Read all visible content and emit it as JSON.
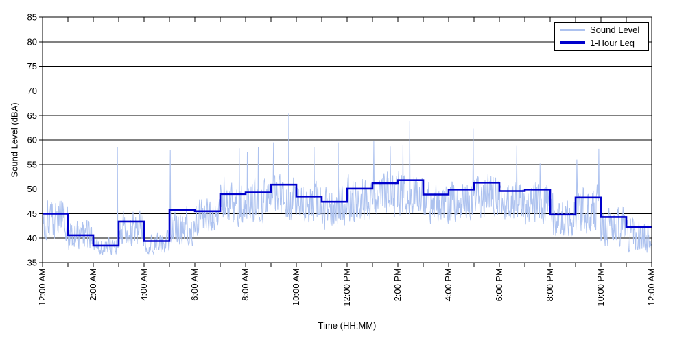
{
  "chart_data": {
    "type": "line",
    "title": "",
    "xlabel": "Time (HH:MM)",
    "ylabel": "Sound Level (dBA)",
    "ylim": [
      35,
      85
    ],
    "ytick_step": 5,
    "x_hours": 24,
    "grid": "horizontal-solid",
    "ytick_labels": [
      "85",
      "80",
      "75",
      "70",
      "65",
      "60",
      "55",
      "50",
      "45",
      "40",
      "35"
    ],
    "xtick_labels": [
      "12:00 AM",
      "2:00 AM",
      "4:00 AM",
      "6:00 AM",
      "8:00 AM",
      "10:00 AM",
      "12:00 PM",
      "2:00 PM",
      "4:00 PM",
      "6:00 PM",
      "8:00 PM",
      "10:00 PM",
      "12:00 AM"
    ],
    "legend": {
      "position": "top-right",
      "entries": [
        {
          "label": "Sound Level",
          "color": "#ADC2EF",
          "line_width": 1
        },
        {
          "label": "1-Hour Leq",
          "color": "#0000CC",
          "line_width": 3
        }
      ]
    },
    "colors": {
      "sound_level": "#ADC2EF",
      "leq": "#0000CC",
      "grid": "#000000",
      "axis": "#000000",
      "text": "#000000",
      "background": "#FFFFFF"
    },
    "series": [
      {
        "name": "Sound Level",
        "type": "minute-samples",
        "description": "Noisy ~1-minute sound level samples, estimated as an hourly min/max envelope plus notable spikes read from the plot",
        "start_dba": 43.5,
        "hourly_range_dba": [
          [
            39,
            49
          ],
          [
            36.8,
            44.5
          ],
          [
            36.5,
            41
          ],
          [
            37.5,
            46.5
          ],
          [
            36.5,
            42
          ],
          [
            38,
            47
          ],
          [
            40,
            49
          ],
          [
            42,
            52.5
          ],
          [
            42.5,
            53.5
          ],
          [
            43,
            54
          ],
          [
            42,
            52.5
          ],
          [
            41,
            52
          ],
          [
            42.5,
            53.5
          ],
          [
            43.5,
            54.5
          ],
          [
            43.5,
            55
          ],
          [
            42.5,
            52.5
          ],
          [
            43,
            53.5
          ],
          [
            43.5,
            54.5
          ],
          [
            43,
            53
          ],
          [
            42,
            53
          ],
          [
            39.5,
            50
          ],
          [
            40,
            52
          ],
          [
            37.5,
            47.5
          ],
          [
            36.5,
            45
          ]
        ],
        "spikes": [
          {
            "hour": 2.95,
            "dba": 58.5
          },
          {
            "hour": 5.03,
            "dba": 58.0
          },
          {
            "hour": 7.15,
            "dba": 52.5
          },
          {
            "hour": 7.75,
            "dba": 58.3
          },
          {
            "hour": 8.07,
            "dba": 57.5
          },
          {
            "hour": 8.5,
            "dba": 58.5
          },
          {
            "hour": 9.1,
            "dba": 59.5
          },
          {
            "hour": 9.7,
            "dba": 65.4
          },
          {
            "hour": 10.7,
            "dba": 58.6
          },
          {
            "hour": 11.65,
            "dba": 59.5
          },
          {
            "hour": 13.05,
            "dba": 59.8
          },
          {
            "hour": 13.7,
            "dba": 58.7
          },
          {
            "hour": 14.2,
            "dba": 59.0
          },
          {
            "hour": 14.47,
            "dba": 63.8
          },
          {
            "hour": 16.97,
            "dba": 62.3
          },
          {
            "hour": 18.68,
            "dba": 58.8
          },
          {
            "hour": 19.6,
            "dba": 55.2
          },
          {
            "hour": 21.05,
            "dba": 56.0
          },
          {
            "hour": 21.92,
            "dba": 58.2
          }
        ]
      },
      {
        "name": "1-Hour Leq",
        "type": "step",
        "hourly_leq_dba": [
          45.0,
          40.6,
          38.5,
          43.4,
          39.4,
          45.8,
          45.5,
          49.0,
          49.3,
          50.9,
          48.5,
          47.4,
          50.1,
          51.2,
          51.8,
          48.9,
          49.9,
          51.3,
          49.6,
          49.9,
          44.8,
          48.3,
          44.3,
          42.3
        ]
      }
    ]
  }
}
